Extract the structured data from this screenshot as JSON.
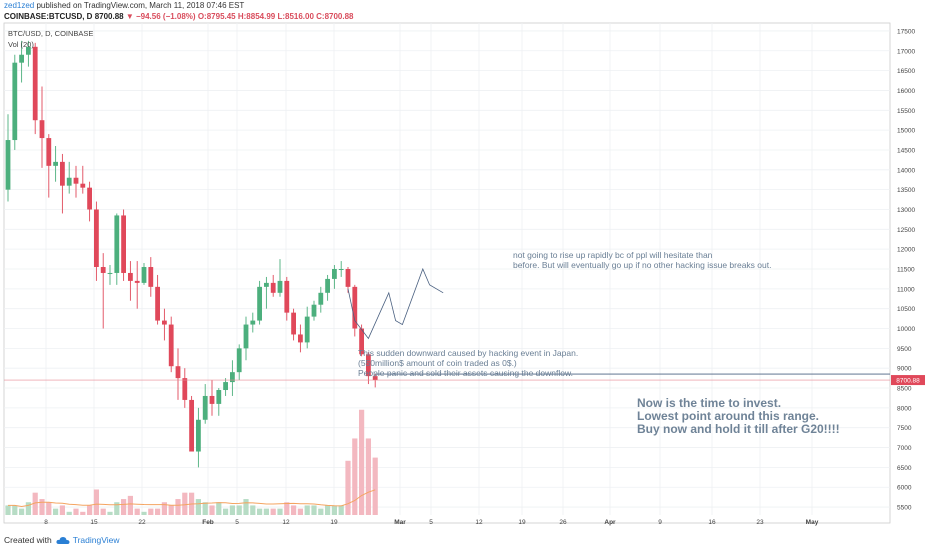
{
  "header": {
    "author": "zed1zed",
    "published": "published on TradingView.com, March 11, 2018 07:46 EST",
    "symbol": "COINBASE:BTCUSD, D",
    "close_prefix": "8700.88",
    "change": "▼ −94.56 (−1.08%)",
    "ohlc": "O:8795.45 H:8854.99 L:8516.00 C:8700.88"
  },
  "pane": {
    "title": "BTC/USD, D, COINBASE",
    "volume_label": "Vol (20)"
  },
  "annotations": {
    "note_top": "not going to rise up rapidly bc of ppl will hesitate than\nbefore. But will eventually go up if no other hacking issue breaks out.",
    "note_mid": "This sudden downward caused by hacking event in Japan.\n(550million$ amount of coin traded as 0$.)\nPeople panic and sold their assets causing the downflow.",
    "note_big": "Now is the time to invest.\nLowest point around this range.\nBuy now and hold it till after G20!!!!"
  },
  "footer": {
    "created_with": "Created with",
    "brand": "TradingView"
  },
  "colors": {
    "up": "#4caf7d",
    "down": "#e0485a",
    "vol_up": "#b7dcc5",
    "vol_down": "#f3b8c0",
    "ma": "#f4a460",
    "price_line": "#e88a95",
    "trend": "#4a6080"
  },
  "chart_data": {
    "type": "candlestick",
    "title": "BTC/USD, D, COINBASE",
    "y_ticks": [
      5500,
      6000,
      6500,
      7000,
      7500,
      8000,
      8500,
      9000,
      9500,
      10000,
      10500,
      11000,
      11500,
      12000,
      12500,
      13000,
      13500,
      14000,
      14500,
      15000,
      15500,
      16000,
      16500,
      17000,
      17500
    ],
    "ylim": [
      5300,
      17700
    ],
    "last_price_label": "8700.88",
    "x_ticks": [
      "8",
      "15",
      "22",
      "Feb",
      "5",
      "12",
      "19",
      "Mar",
      "5",
      "12",
      "19",
      "26",
      "Apr",
      "9",
      "16",
      "23",
      "May"
    ],
    "candles": [
      {
        "o": 13500,
        "h": 15400,
        "l": 13200,
        "c": 14750
      },
      {
        "o": 14750,
        "h": 16900,
        "l": 14500,
        "c": 16700
      },
      {
        "o": 16700,
        "h": 17250,
        "l": 16200,
        "c": 16900
      },
      {
        "o": 16900,
        "h": 17250,
        "l": 16600,
        "c": 17100
      },
      {
        "o": 17100,
        "h": 17200,
        "l": 14900,
        "c": 15250
      },
      {
        "o": 15250,
        "h": 16100,
        "l": 14050,
        "c": 14800
      },
      {
        "o": 14800,
        "h": 14900,
        "l": 13300,
        "c": 14100
      },
      {
        "o": 14100,
        "h": 14600,
        "l": 13700,
        "c": 14200
      },
      {
        "o": 14200,
        "h": 14400,
        "l": 12900,
        "c": 13600
      },
      {
        "o": 13600,
        "h": 14200,
        "l": 13400,
        "c": 13800
      },
      {
        "o": 13800,
        "h": 14100,
        "l": 13300,
        "c": 13650
      },
      {
        "o": 13650,
        "h": 14100,
        "l": 13400,
        "c": 13550
      },
      {
        "o": 13550,
        "h": 13700,
        "l": 12700,
        "c": 13000
      },
      {
        "o": 13000,
        "h": 13200,
        "l": 11200,
        "c": 11550
      },
      {
        "o": 11550,
        "h": 11900,
        "l": 10000,
        "c": 11400
      },
      {
        "o": 11400,
        "h": 11600,
        "l": 11100,
        "c": 11400
      },
      {
        "o": 11400,
        "h": 12900,
        "l": 11100,
        "c": 12850
      },
      {
        "o": 12850,
        "h": 13000,
        "l": 11200,
        "c": 11400
      },
      {
        "o": 11400,
        "h": 11700,
        "l": 10700,
        "c": 11200
      },
      {
        "o": 11200,
        "h": 11700,
        "l": 10500,
        "c": 11150
      },
      {
        "o": 11150,
        "h": 11650,
        "l": 11100,
        "c": 11550
      },
      {
        "o": 11550,
        "h": 11800,
        "l": 10800,
        "c": 11050
      },
      {
        "o": 11050,
        "h": 11350,
        "l": 10100,
        "c": 10200
      },
      {
        "o": 10200,
        "h": 10500,
        "l": 9700,
        "c": 10100
      },
      {
        "o": 10100,
        "h": 10300,
        "l": 8900,
        "c": 9050
      },
      {
        "o": 9050,
        "h": 9500,
        "l": 8200,
        "c": 8750
      },
      {
        "o": 8750,
        "h": 9000,
        "l": 8000,
        "c": 8200
      },
      {
        "o": 8200,
        "h": 8300,
        "l": 7000,
        "c": 6900
      },
      {
        "o": 6900,
        "h": 8000,
        "l": 6500,
        "c": 7700
      },
      {
        "o": 7700,
        "h": 8600,
        "l": 7600,
        "c": 8300
      },
      {
        "o": 8300,
        "h": 8700,
        "l": 7800,
        "c": 8100
      },
      {
        "o": 8100,
        "h": 8500,
        "l": 7800,
        "c": 8450
      },
      {
        "o": 8450,
        "h": 8750,
        "l": 8300,
        "c": 8650
      },
      {
        "o": 8650,
        "h": 9200,
        "l": 8300,
        "c": 8900
      },
      {
        "o": 8900,
        "h": 9600,
        "l": 8700,
        "c": 9500
      },
      {
        "o": 9500,
        "h": 10300,
        "l": 9200,
        "c": 10100
      },
      {
        "o": 10100,
        "h": 10400,
        "l": 9900,
        "c": 10200
      },
      {
        "o": 10200,
        "h": 11200,
        "l": 10100,
        "c": 11050
      },
      {
        "o": 11050,
        "h": 11300,
        "l": 10500,
        "c": 11150
      },
      {
        "o": 11150,
        "h": 11350,
        "l": 10800,
        "c": 10900
      },
      {
        "o": 10900,
        "h": 11750,
        "l": 10800,
        "c": 11200
      },
      {
        "o": 11200,
        "h": 11300,
        "l": 10200,
        "c": 10400
      },
      {
        "o": 10400,
        "h": 10500,
        "l": 9700,
        "c": 9850
      },
      {
        "o": 9850,
        "h": 10100,
        "l": 9400,
        "c": 9650
      },
      {
        "o": 9650,
        "h": 10550,
        "l": 9500,
        "c": 10300
      },
      {
        "o": 10300,
        "h": 10700,
        "l": 10200,
        "c": 10600
      },
      {
        "o": 10600,
        "h": 11050,
        "l": 10400,
        "c": 10900
      },
      {
        "o": 10900,
        "h": 11350,
        "l": 10700,
        "c": 11250
      },
      {
        "o": 11250,
        "h": 11600,
        "l": 11000,
        "c": 11500
      },
      {
        "o": 11500,
        "h": 11700,
        "l": 11300,
        "c": 11500
      },
      {
        "o": 11500,
        "h": 11550,
        "l": 10900,
        "c": 11050
      },
      {
        "o": 11050,
        "h": 11100,
        "l": 9800,
        "c": 10000
      },
      {
        "o": 10000,
        "h": 10100,
        "l": 9300,
        "c": 9350
      },
      {
        "o": 9350,
        "h": 9400,
        "l": 8600,
        "c": 8800
      },
      {
        "o": 8800,
        "h": 8850,
        "l": 8516,
        "c": 8700.88
      }
    ],
    "volumes": [
      5.4,
      5.4,
      5.3,
      5.5,
      5.8,
      5.6,
      5.5,
      5.3,
      5.4,
      5.2,
      5.3,
      5.2,
      5.4,
      5.9,
      5.3,
      5.2,
      5.5,
      5.6,
      5.7,
      5.3,
      5.2,
      5.3,
      5.3,
      5.5,
      5.4,
      5.6,
      5.8,
      5.8,
      5.6,
      5.5,
      5.4,
      5.5,
      5.3,
      5.4,
      5.4,
      5.6,
      5.4,
      5.3,
      5.3,
      5.3,
      5.3,
      5.5,
      5.4,
      5.3,
      5.4,
      5.4,
      5.3,
      5.4,
      5.4,
      5.4,
      6.8,
      7.5,
      8.4,
      7.5,
      6.9
    ]
  }
}
